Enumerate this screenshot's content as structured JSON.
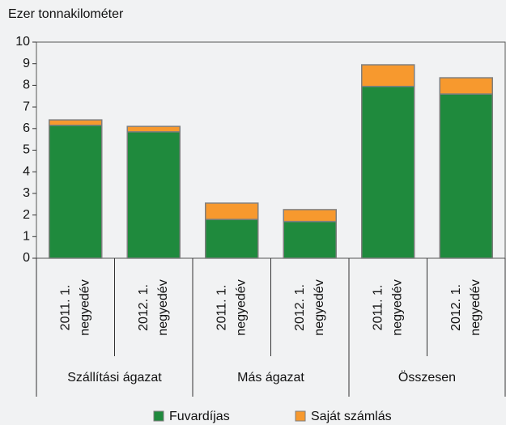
{
  "chart_data": {
    "type": "bar",
    "stacked": true,
    "y_label": "Ezer tonnakilométer",
    "categories": [
      [
        "2011. 1.",
        "negyedév"
      ],
      [
        "2012. 1.",
        "negyedév"
      ],
      [
        "2011. 1.",
        "negyedév"
      ],
      [
        "2012. 1.",
        "negyedév"
      ],
      [
        "2011. 1.",
        "negyedév"
      ],
      [
        "2012. 1.",
        "negyedév"
      ]
    ],
    "groups": [
      "Szállítási ágazat",
      "Más ágazat",
      "Összesen"
    ],
    "series": [
      {
        "name": "Fuvardíjas",
        "color": "#1f8a3d",
        "values": [
          6.15,
          5.85,
          1.8,
          1.7,
          7.95,
          7.6
        ]
      },
      {
        "name": "Saját számlás",
        "color": "#f7992e",
        "values": [
          0.25,
          0.25,
          0.75,
          0.55,
          1.0,
          0.75
        ]
      }
    ],
    "ylim": [
      0,
      10
    ],
    "yticks": [
      0,
      1,
      2,
      3,
      4,
      5,
      6,
      7,
      8,
      9,
      10
    ],
    "grid": false
  }
}
